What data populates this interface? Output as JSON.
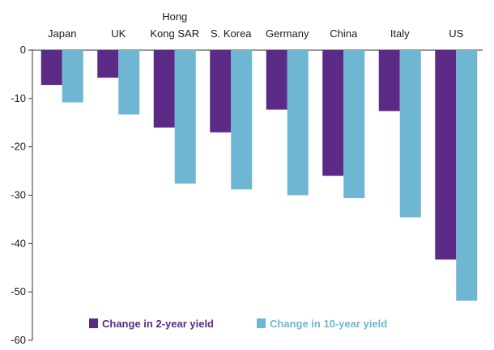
{
  "chart_data": {
    "type": "bar",
    "title": "",
    "xlabel": "",
    "ylabel": "",
    "categories": [
      "Japan",
      "UK",
      "Hong Kong SAR",
      "S. Korea",
      "Germany",
      "China",
      "Italy",
      "US"
    ],
    "category_lines": [
      [
        "Japan"
      ],
      [
        "UK"
      ],
      [
        "Hong",
        "Kong SAR"
      ],
      [
        "S. Korea"
      ],
      [
        "Germany"
      ],
      [
        "China"
      ],
      [
        "Italy"
      ],
      [
        "US"
      ]
    ],
    "series": [
      {
        "name": "Change in 2-year yield",
        "color": "#5b2a86",
        "values": [
          -7.2,
          -5.7,
          -16.0,
          -17.0,
          -12.3,
          -26.0,
          -12.6,
          -43.3
        ]
      },
      {
        "name": "Change in 10-year yield",
        "color": "#6fb6d3",
        "values": [
          -10.8,
          -13.3,
          -27.6,
          -28.8,
          -30.0,
          -30.6,
          -34.6,
          -51.8
        ]
      }
    ],
    "ylim": [
      -60,
      0
    ],
    "yticks": [
      0,
      -10,
      -20,
      -30,
      -40,
      -50,
      -60
    ],
    "xaxis_position": "top",
    "grid": false,
    "legend_position": "bottom"
  }
}
